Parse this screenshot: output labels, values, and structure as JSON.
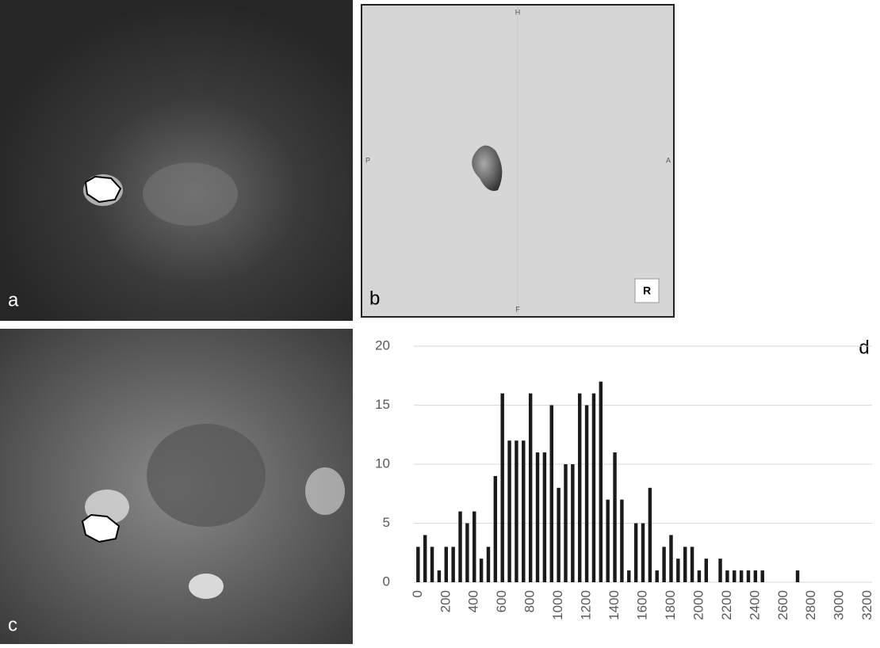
{
  "panels": {
    "a": {
      "label": "a"
    },
    "b": {
      "label": "b",
      "markers": {
        "top": "H",
        "left": "P",
        "right": "A",
        "bottom": "F",
        "box": "R"
      }
    },
    "c": {
      "label": "c"
    }
  },
  "chart_data": {
    "type": "bar",
    "panel_label": "d",
    "x": [
      0,
      50,
      100,
      150,
      200,
      250,
      300,
      350,
      400,
      450,
      500,
      550,
      600,
      650,
      700,
      750,
      800,
      850,
      900,
      950,
      1000,
      1050,
      1100,
      1150,
      1200,
      1250,
      1300,
      1350,
      1400,
      1450,
      1500,
      1550,
      1600,
      1650,
      1700,
      1750,
      1800,
      1850,
      1900,
      1950,
      2000,
      2050,
      2100,
      2150,
      2200,
      2250,
      2300,
      2350,
      2400,
      2450,
      2500,
      2550,
      2600,
      2650,
      2700
    ],
    "values": [
      3,
      4,
      3,
      1,
      3,
      3,
      6,
      5,
      6,
      2,
      3,
      9,
      16,
      12,
      12,
      12,
      16,
      11,
      11,
      15,
      8,
      10,
      10,
      16,
      15,
      16,
      17,
      7,
      11,
      7,
      1,
      5,
      5,
      8,
      1,
      3,
      4,
      2,
      3,
      3,
      1,
      2,
      0,
      2,
      1,
      1,
      1,
      1,
      1,
      1,
      0,
      0,
      0,
      0,
      1
    ],
    "color": "#1a1a1a",
    "xlim": [
      -30,
      3230
    ],
    "xticks": [
      0,
      200,
      400,
      600,
      800,
      1000,
      1200,
      1400,
      1600,
      1800,
      2000,
      2200,
      2400,
      2600,
      2800,
      3000,
      3200
    ],
    "ylim": [
      0,
      20
    ],
    "yticks": [
      0,
      5,
      10,
      15,
      20
    ],
    "grid": true
  }
}
